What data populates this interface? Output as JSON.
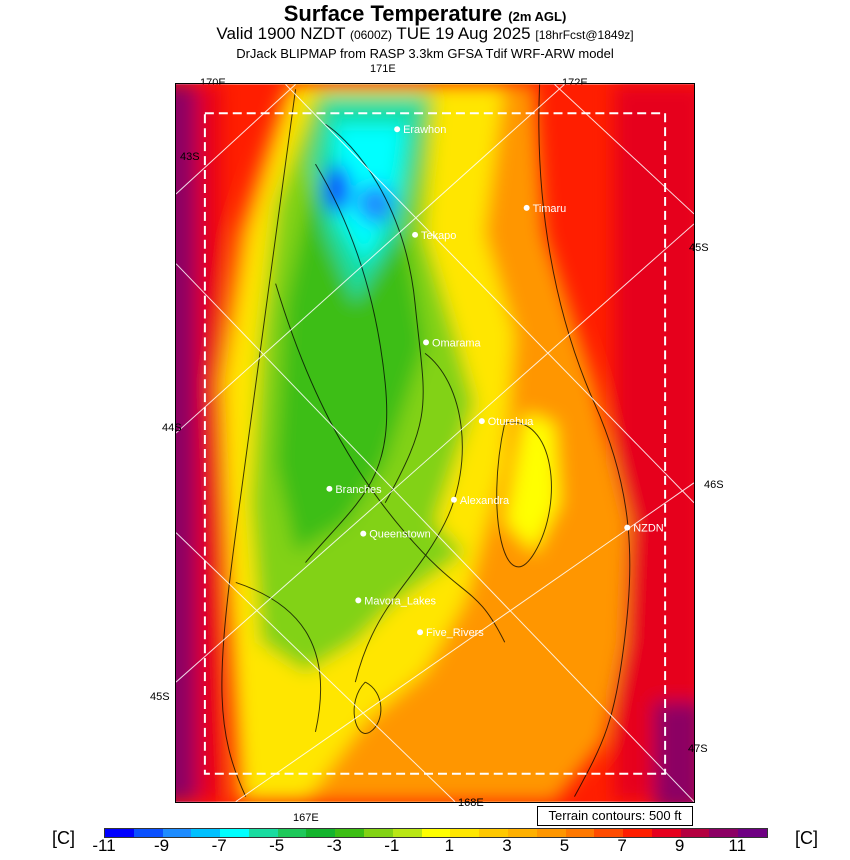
{
  "header": {
    "title": "Surface Temperature",
    "title_note": "(2m AGL)",
    "valid_prefix": "Valid 1900 NZDT",
    "valid_z": "(0600Z)",
    "valid_date": "TUE 19 Aug 2025",
    "forecast": "[18hrFcst@1849z]",
    "model": "DrJack BLIPMAP from RASP 3.3km GFSA Tdif WRF-ARW model"
  },
  "axes": {
    "lon_170": "170E",
    "lon_171": "171E",
    "lon_172": "172E",
    "lon_167": "167E",
    "lon_168": "168E",
    "lat_43": "43S",
    "lat_44": "44S",
    "lat_45_left": "45S",
    "lat_45_right": "45S",
    "lat_46": "46S",
    "lat_47": "47S"
  },
  "cities": [
    "Erawhon",
    "Timaru",
    "Tekapo",
    "Omarama",
    "Oturehua",
    "Branches",
    "Alexandra",
    "NZDN",
    "Queenstown",
    "Mavora_Lakes",
    "Five_Rivers"
  ],
  "terrain_note": "Terrain contours: 500 ft",
  "colorbar": {
    "unit": "[C]",
    "labels": [
      "-11",
      "-9",
      "-7",
      "-5",
      "-3",
      "-1",
      "1",
      "3",
      "5",
      "7",
      "9",
      "11"
    ],
    "range": [
      -11,
      12
    ],
    "colors": [
      "#0000ff",
      "#0a50ff",
      "#1e8cff",
      "#00c0ff",
      "#00ffff",
      "#19dca0",
      "#1ec85a",
      "#14b42d",
      "#3cbe14",
      "#82d214",
      "#b9e614",
      "#ffff00",
      "#ffe600",
      "#ffc800",
      "#ffb000",
      "#ff9600",
      "#ff7800",
      "#ff4b00",
      "#ff1e00",
      "#e6001e",
      "#b40040",
      "#8c0064",
      "#6e0082"
    ]
  }
}
